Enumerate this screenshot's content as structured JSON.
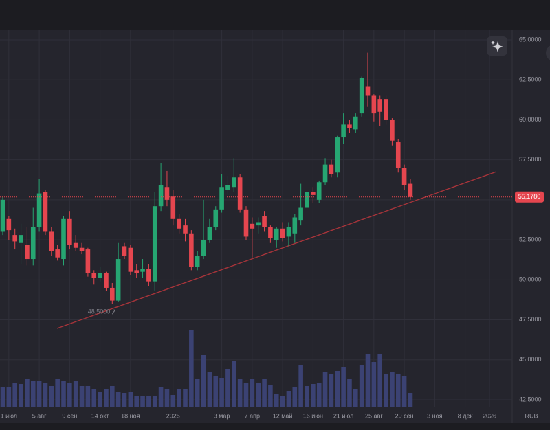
{
  "chart_data": {
    "type": "candlestick",
    "categories": [
      null,
      "1 июл",
      null,
      null,
      null,
      null,
      "5 авг",
      null,
      null,
      null,
      null,
      "9 сен",
      null,
      null,
      null,
      null,
      "14 окт",
      null,
      null,
      null,
      null,
      "18 ноя",
      null,
      null,
      null,
      null,
      null,
      null,
      "2025",
      null,
      null,
      null,
      null,
      null,
      null,
      null,
      "3 мар",
      null,
      null,
      null,
      null,
      "7 апр",
      null,
      null,
      null,
      null,
      "12 май",
      null,
      null,
      null,
      null,
      "16 июн",
      null,
      null,
      null,
      null,
      "21 июл",
      null,
      null,
      null,
      null,
      "25 авг",
      null,
      null,
      null,
      null,
      "29 сен",
      null,
      null,
      null,
      null,
      "3 ноя",
      null,
      null,
      null,
      null,
      "8 дек",
      null,
      null,
      null,
      "2026",
      null
    ],
    "open": [
      53.0,
      53.8,
      52.8,
      52.3,
      52.2,
      51.3,
      53.3,
      55.5,
      53.0,
      51.9,
      51.3,
      53.8,
      52.3,
      52.0,
      51.9,
      50.4,
      50.1,
      50.4,
      49.5,
      48.7,
      52.1,
      52.0,
      50.6,
      50.5,
      50.7,
      49.9,
      54.6,
      55.8,
      55.2,
      53.8,
      53.4,
      52.9,
      50.8,
      51.5,
      52.5,
      53.3,
      54.4,
      55.6,
      55.8,
      56.4,
      54.4,
      53.5,
      53.4,
      54.0,
      53.3,
      52.5,
      53.2,
      52.7,
      52.9,
      53.7,
      54.5,
      55.5,
      55.0,
      56.1,
      57.2,
      56.7,
      58.9,
      59.7,
      59.4,
      60.4,
      62.1,
      61.5,
      61.3,
      61.3,
      60.0,
      58.6,
      57.0,
      56.0,
      null,
      null,
      null,
      null,
      null,
      null,
      null,
      null,
      null,
      null,
      null,
      null,
      null,
      null
    ],
    "high": [
      55.2,
      54.0,
      53.2,
      53.5,
      53.3,
      54.5,
      56.3,
      55.6,
      53.3,
      52.2,
      54.0,
      54.3,
      52.8,
      52.3,
      52.0,
      50.6,
      50.8,
      50.5,
      49.8,
      52.3,
      52.3,
      52.2,
      51.0,
      51.3,
      51.0,
      55.5,
      57.3,
      56.8,
      55.6,
      54.1,
      53.8,
      53.1,
      51.8,
      55.0,
      53.8,
      54.6,
      56.6,
      56.5,
      57.6,
      56.6,
      54.6,
      53.9,
      53.9,
      54.3,
      53.4,
      53.3,
      53.6,
      53.6,
      54.1,
      56.0,
      55.7,
      55.8,
      56.2,
      57.6,
      57.5,
      59.0,
      60.4,
      60.0,
      60.4,
      62.7,
      64.2,
      61.6,
      61.5,
      61.5,
      60.1,
      58.8,
      57.2,
      56.3,
      null,
      null,
      null,
      null,
      null,
      null,
      null,
      null,
      null,
      null,
      null,
      null,
      null,
      null
    ],
    "low": [
      52.8,
      52.5,
      51.9,
      51.0,
      50.9,
      50.9,
      53.0,
      52.8,
      51.5,
      51.2,
      50.9,
      51.9,
      51.8,
      51.6,
      50.2,
      49.7,
      49.9,
      49.3,
      48.5,
      48.6,
      51.3,
      50.3,
      50.1,
      50.1,
      49.6,
      49.3,
      54.3,
      54.6,
      53.4,
      52.9,
      52.4,
      50.6,
      50.6,
      51.3,
      52.3,
      53.1,
      54.2,
      55.3,
      55.5,
      54.2,
      52.5,
      51.4,
      52.9,
      53.0,
      52.3,
      52.0,
      52.4,
      52.1,
      52.3,
      53.4,
      54.2,
      54.8,
      54.8,
      55.9,
      56.4,
      56.4,
      58.5,
      59.2,
      59.2,
      60.2,
      60.8,
      59.9,
      59.6,
      59.7,
      58.4,
      56.7,
      55.6,
      55.0,
      null,
      null,
      null,
      null,
      null,
      null,
      null,
      null,
      null,
      null,
      null,
      null,
      null,
      null
    ],
    "close": [
      55.0,
      53.1,
      52.4,
      52.8,
      51.3,
      53.3,
      55.4,
      53.0,
      51.8,
      51.4,
      53.8,
      52.2,
      52.0,
      51.8,
      50.4,
      50.1,
      50.4,
      49.5,
      48.7,
      51.3,
      51.5,
      50.5,
      50.4,
      50.7,
      49.9,
      54.6,
      55.9,
      55.0,
      53.8,
      53.2,
      52.9,
      50.8,
      51.5,
      52.5,
      53.3,
      54.4,
      55.8,
      55.9,
      56.4,
      54.4,
      52.7,
      53.2,
      53.6,
      53.3,
      52.6,
      53.2,
      52.6,
      53.3,
      53.9,
      54.5,
      55.5,
      55.3,
      56.1,
      57.2,
      56.6,
      58.9,
      59.7,
      59.5,
      60.2,
      62.6,
      61.5,
      60.4,
      60.5,
      60.0,
      58.7,
      57.0,
      55.9,
      55.178,
      null,
      null,
      null,
      null,
      null,
      null,
      null,
      null,
      null,
      null,
      null,
      null,
      null,
      null
    ],
    "volume": [
      28,
      28,
      35,
      33,
      40,
      38,
      38,
      35,
      30,
      40,
      38,
      35,
      38,
      30,
      30,
      25,
      22,
      25,
      30,
      22,
      20,
      22,
      15,
      15,
      15,
      15,
      28,
      25,
      17,
      25,
      25,
      112,
      40,
      75,
      50,
      45,
      42,
      55,
      67,
      40,
      35,
      40,
      35,
      40,
      32,
      18,
      15,
      23,
      28,
      60,
      30,
      33,
      35,
      50,
      48,
      52,
      57,
      40,
      25,
      60,
      77,
      65,
      76,
      48,
      50,
      48,
      45,
      20,
      null,
      null,
      null,
      null,
      null,
      null,
      null,
      null,
      null,
      null,
      null,
      null,
      null,
      null
    ],
    "volume_lim": [
      0,
      120
    ],
    "up_color": "#26a672",
    "down_color": "#e5464f",
    "volume_color": "#3b4273",
    "ylim": [
      42.07,
      65.6
    ],
    "yticks": [
      {
        "value": 42.5,
        "label": "42,5000"
      },
      {
        "value": 45,
        "label": "45,0000"
      },
      {
        "value": 47.5,
        "label": "47,5000"
      },
      {
        "value": 50,
        "label": "50,0000"
      },
      {
        "value": 52.5,
        "label": "52,5000"
      },
      {
        "value": 55,
        "label": "55,0000"
      },
      {
        "value": 57.5,
        "label": "57,5000"
      },
      {
        "value": 60,
        "label": "60,0000"
      },
      {
        "value": 62.5,
        "label": "62,5000"
      },
      {
        "value": 65,
        "label": "65,0000"
      }
    ],
    "grid": true,
    "last_price_label": "55,1780",
    "low_label": "48,5000",
    "currency": "RUB"
  }
}
